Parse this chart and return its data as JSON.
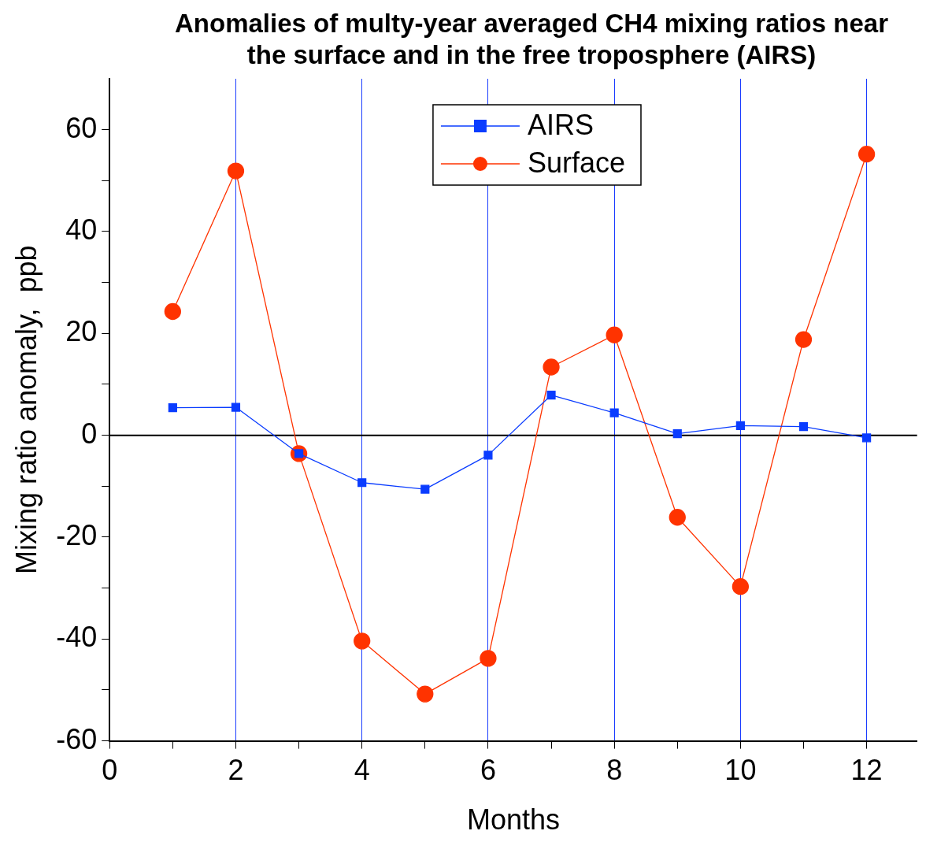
{
  "chart_data": {
    "type": "line",
    "title": "Anomalies of multy-year averaged CH4 mixing ratios near the surface and in the free troposphere (AIRS)",
    "xlabel": "Months",
    "ylabel": "Mixing ratio anomaly,  ppb",
    "x": [
      1,
      2,
      3,
      4,
      5,
      6,
      7,
      8,
      9,
      10,
      11,
      12
    ],
    "series": [
      {
        "name": "AIRS",
        "color": "#0a3cff",
        "marker": "square",
        "values": [
          5.4,
          5.5,
          -3.6,
          -9.3,
          -10.6,
          -3.9,
          7.9,
          4.4,
          0.3,
          1.9,
          1.7,
          -0.5
        ]
      },
      {
        "name": "Surface",
        "color": "#ff3300",
        "marker": "circle",
        "values": [
          24.3,
          51.9,
          -3.6,
          -40.4,
          -50.8,
          -43.8,
          13.4,
          19.7,
          -16.1,
          -29.7,
          18.8,
          55.2
        ]
      }
    ],
    "xlim": [
      0,
      12.8
    ],
    "xticks": [
      0,
      {
        "value": 1,
        "label": null
      },
      2,
      {
        "value": 3,
        "label": null
      },
      4,
      {
        "value": 5,
        "label": null
      },
      6,
      {
        "value": 7,
        "label": null
      },
      8,
      {
        "value": 9,
        "label": null
      },
      10,
      {
        "value": 11,
        "label": null
      },
      12
    ],
    "ylim": [
      -60,
      70
    ],
    "yticks": [
      -60,
      {
        "value": -50,
        "label": null
      },
      -40,
      {
        "value": -30,
        "label": null
      },
      -20,
      {
        "value": -10,
        "label": null
      },
      0,
      {
        "value": 10,
        "label": null
      },
      20,
      {
        "value": 30,
        "label": null
      },
      40,
      {
        "value": 50,
        "label": null
      },
      60
    ],
    "grid": "x",
    "legend": "top",
    "line_style": "solid",
    "ref_lines": [
      {
        "axis": "y",
        "value": 0,
        "color": "#000000"
      }
    ]
  }
}
